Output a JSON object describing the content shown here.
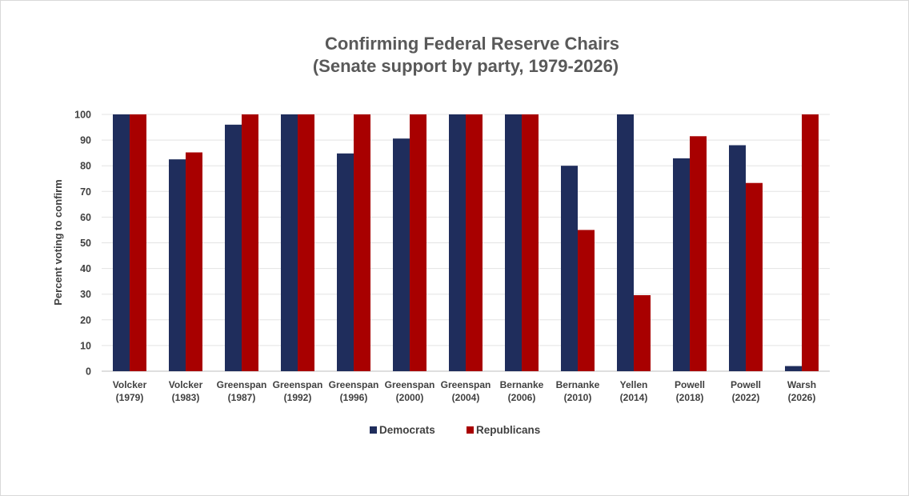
{
  "chart_data": {
    "type": "bar",
    "title": "Confirming Federal Reserve Chairs",
    "subtitle": "(Senate support by party, 1979-2026)",
    "ylabel": "Percent voting to confirm",
    "xlabel": "",
    "ylim": [
      0,
      100
    ],
    "yticks": [
      0,
      10,
      20,
      30,
      40,
      50,
      60,
      70,
      80,
      90,
      100
    ],
    "grid": true,
    "legend_position": "bottom",
    "categories": [
      [
        "Volcker",
        "(1979)"
      ],
      [
        "Volcker",
        "(1983)"
      ],
      [
        "Greenspan",
        "(1987)"
      ],
      [
        "Greenspan",
        "(1992)"
      ],
      [
        "Greenspan",
        "(1996)"
      ],
      [
        "Greenspan",
        "(2000)"
      ],
      [
        "Greenspan",
        "(2004)"
      ],
      [
        "Bernanke",
        "(2006)"
      ],
      [
        "Bernanke",
        "(2010)"
      ],
      [
        "Yellen",
        "(2014)"
      ],
      [
        "Powell",
        "(2018)"
      ],
      [
        "Powell",
        "(2022)"
      ],
      [
        "Warsh",
        "(2026)"
      ]
    ],
    "series": [
      {
        "name": "Democrats",
        "color": "#1f2d5c",
        "values": [
          100,
          82.5,
          96,
          100,
          84.8,
          90.6,
          100,
          100,
          80,
          100,
          82.9,
          88,
          2
        ]
      },
      {
        "name": "Republicans",
        "color": "#a80000",
        "values": [
          100,
          85.2,
          100,
          100,
          100,
          100,
          100,
          100,
          55,
          29.6,
          91.5,
          73.3,
          100
        ]
      }
    ]
  }
}
